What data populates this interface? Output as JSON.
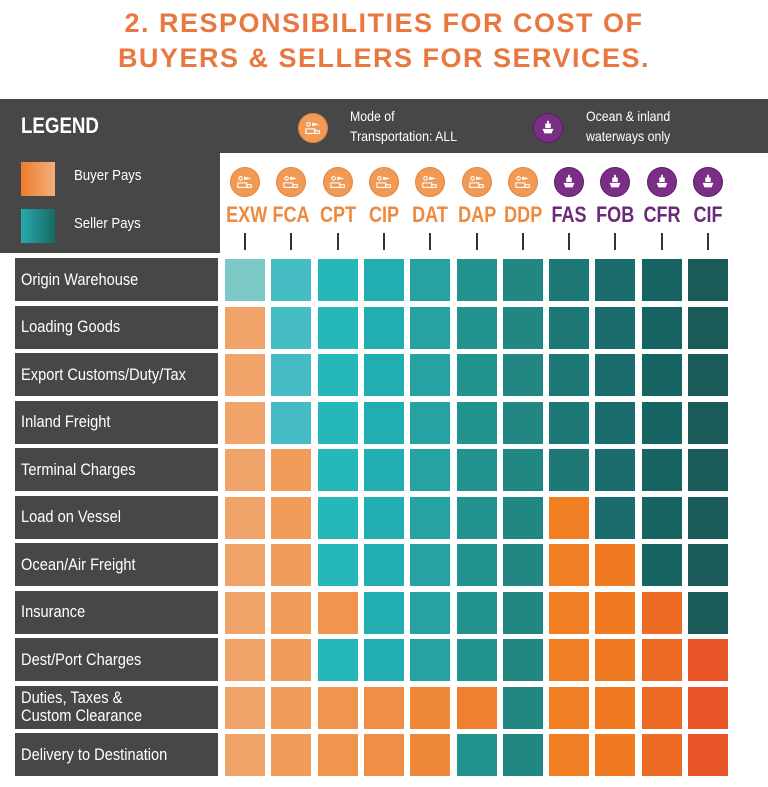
{
  "title": {
    "line1": "2. RESPONSIBILITIES FOR COST OF",
    "line2": "BUYERS & SELLERS FOR SERVICES."
  },
  "legend": {
    "title": "LEGEND",
    "buyer_label": "Buyer Pays",
    "seller_label": "Seller Pays",
    "mode_all_label": "Mode of\nTransportation: ALL",
    "ocean_label": "Ocean & inland\nwaterways only",
    "mode_all_icon": "multimodal-transport-icon",
    "ocean_icon": "ship-icon"
  },
  "colors": {
    "title": "#e8783f",
    "all_modes": "#f09a55",
    "ocean": "#7a2e86",
    "label_bg": "#474747"
  },
  "terms": [
    {
      "code": "EXW",
      "mode": "all"
    },
    {
      "code": "FCA",
      "mode": "all"
    },
    {
      "code": "CPT",
      "mode": "all"
    },
    {
      "code": "CIP",
      "mode": "all"
    },
    {
      "code": "DAT",
      "mode": "all"
    },
    {
      "code": "DAP",
      "mode": "all"
    },
    {
      "code": "DDP",
      "mode": "all"
    },
    {
      "code": "FAS",
      "mode": "sea"
    },
    {
      "code": "FOB",
      "mode": "sea"
    },
    {
      "code": "CFR",
      "mode": "sea"
    },
    {
      "code": "CIF",
      "mode": "sea"
    }
  ],
  "services": [
    {
      "label": "Origin Warehouse",
      "payers": "SSSSSSSSSSS"
    },
    {
      "label": "Loading Goods",
      "payers": "BSSSSSSSSSS"
    },
    {
      "label": "Export Customs/Duty/Tax",
      "payers": "BSSSSSSSSSS"
    },
    {
      "label": "Inland Freight",
      "payers": "BSSSSSSSSSS"
    },
    {
      "label": "Terminal Charges",
      "payers": "BBSSSSSSSSS"
    },
    {
      "label": "Load on Vessel",
      "payers": "BBSSSSSBSSS"
    },
    {
      "label": "Ocean/Air Freight",
      "payers": "BBSSSSSBBSS"
    },
    {
      "label": "Insurance",
      "payers": "BBBSSSSBBBS"
    },
    {
      "label": "Dest/Port Charges",
      "payers": "BBSSSSSBBBB"
    },
    {
      "label": "Duties, Taxes &\nCustom Clearance",
      "payers": "BBBBBBSBBBB"
    },
    {
      "label": "Delivery to Destination",
      "payers": "BBBBBSSBBBB"
    }
  ]
}
